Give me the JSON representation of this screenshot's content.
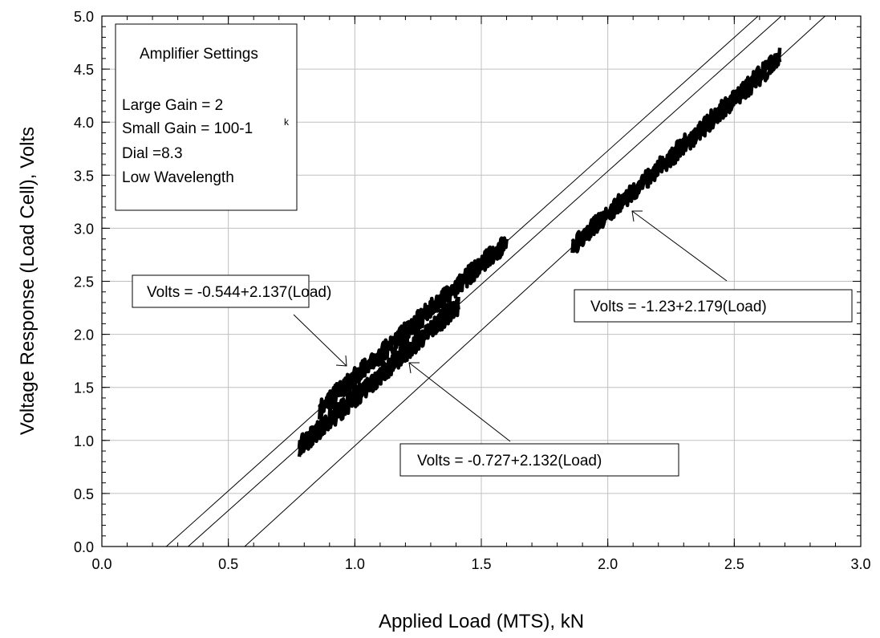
{
  "chart_data": {
    "type": "scatter",
    "xlabel": "Applied Load (MTS), kN",
    "ylabel": "Voltage Response (Load Cell), Volts",
    "xlim": [
      0.0,
      3.0
    ],
    "ylim": [
      0.0,
      5.0
    ],
    "x_ticks": [
      "0.0",
      "0.5",
      "1.0",
      "1.5",
      "2.0",
      "2.5",
      "3.0"
    ],
    "y_ticks": [
      "0.0",
      "0.5",
      "1.0",
      "1.5",
      "2.0",
      "2.5",
      "3.0",
      "3.5",
      "4.0",
      "4.5",
      "5.0"
    ],
    "grid": true,
    "series": [
      {
        "x_range": [
          0.86,
          1.6
        ],
        "intercept": -0.544,
        "slope": 2.137
      },
      {
        "x_range": [
          0.78,
          1.41
        ],
        "intercept": -0.727,
        "slope": 2.132
      },
      {
        "x_range": [
          1.86,
          2.68
        ],
        "intercept": -1.23,
        "slope": 2.179
      }
    ],
    "fit_lines": [
      {
        "label": "Volts = -0.544+2.137(Load)",
        "intercept": -0.544,
        "slope": 2.137
      },
      {
        "label": "Volts = -0.727+2.132(Load)",
        "intercept": -0.727,
        "slope": 2.132
      },
      {
        "label": "Volts = -1.23+2.179(Load)",
        "intercept": -1.23,
        "slope": 2.179
      }
    ],
    "settings_box": {
      "title": "Amplifier Settings",
      "lines": [
        "Large Gain = 2",
        "Small Gain = 100-1",
        "Dial =8.3",
        "Low Wavelength"
      ],
      "superscript": "k"
    }
  }
}
